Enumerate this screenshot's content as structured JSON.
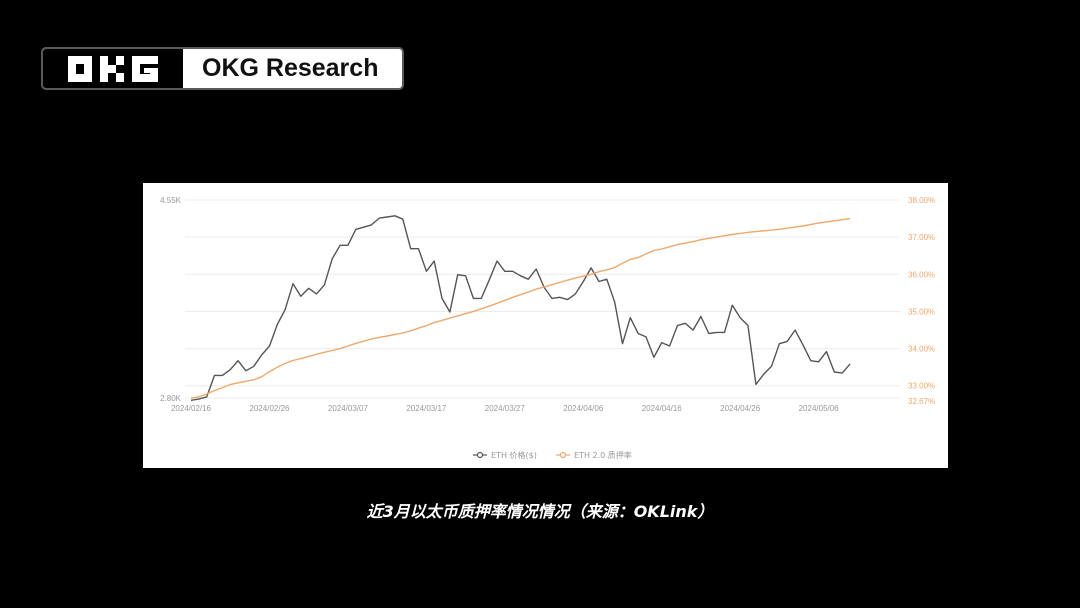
{
  "header": {
    "brand_name": "OKG Research",
    "logo_icon": "okx-logo-icon"
  },
  "caption": "近3月以太币质押率情况情况（来源：OKLink）",
  "colors": {
    "price_line": "#555555",
    "staking_line": "#f0a869",
    "grid": "#ececec",
    "axis_text": "#999999"
  },
  "chart_data": {
    "type": "line",
    "title": "",
    "xlabel": "",
    "ylabel": "",
    "legend_position": "bottom",
    "grid": true,
    "x_tick_labels": [
      "2024/02/16",
      "2024/02/26",
      "2024/03/07",
      "2024/03/17",
      "2024/03/27",
      "2024/04/06",
      "2024/04/16",
      "2024/04/26",
      "2024/05/06"
    ],
    "y_left": {
      "min": 2800,
      "max": 4550,
      "tick_labels": [
        "4.55K",
        "2.80K"
      ]
    },
    "y_right": {
      "min": 32.67,
      "max": 38.0,
      "tick_labels": [
        "38.00%",
        "37.00%",
        "36.00%",
        "35.00%",
        "34.00%",
        "33.00%",
        "32.67%"
      ],
      "tick_values": [
        38,
        37,
        36,
        35,
        34,
        33,
        32.67
      ]
    },
    "series": [
      {
        "name": "ETH 价格($)",
        "axis": "left",
        "values": [
          2780,
          2790,
          2810,
          3000,
          3000,
          3050,
          3130,
          3040,
          3080,
          3180,
          3260,
          3450,
          3580,
          3810,
          3700,
          3770,
          3720,
          3800,
          4030,
          4150,
          4150,
          4290,
          4310,
          4330,
          4390,
          4400,
          4410,
          4380,
          4120,
          4120,
          3920,
          4010,
          3680,
          3560,
          3890,
          3880,
          3680,
          3680,
          3840,
          4010,
          3920,
          3920,
          3880,
          3850,
          3940,
          3780,
          3680,
          3690,
          3670,
          3720,
          3830,
          3950,
          3830,
          3850,
          3650,
          3280,
          3510,
          3370,
          3340,
          3160,
          3290,
          3260,
          3440,
          3460,
          3400,
          3520,
          3370,
          3380,
          3380,
          3620,
          3510,
          3440,
          2920,
          3010,
          3080,
          3280,
          3300,
          3400,
          3270,
          3130,
          3120,
          3210,
          3030,
          3020,
          3100
        ]
      },
      {
        "name": "ETH 2.0 质押率",
        "axis": "right",
        "values": [
          32.67,
          32.7,
          32.78,
          32.87,
          32.95,
          33.03,
          33.08,
          33.12,
          33.16,
          33.24,
          33.38,
          33.5,
          33.6,
          33.68,
          33.73,
          33.79,
          33.85,
          33.9,
          33.95,
          34.0,
          34.07,
          34.14,
          34.2,
          34.26,
          34.3,
          34.34,
          34.38,
          34.42,
          34.48,
          34.55,
          34.62,
          34.7,
          34.76,
          34.82,
          34.88,
          34.94,
          35.0,
          35.07,
          35.14,
          35.22,
          35.3,
          35.38,
          35.45,
          35.52,
          35.6,
          35.66,
          35.72,
          35.78,
          35.84,
          35.9,
          35.95,
          36.0,
          36.07,
          36.12,
          36.18,
          36.3,
          36.4,
          36.45,
          36.55,
          36.64,
          36.68,
          36.74,
          36.8,
          36.84,
          36.88,
          36.93,
          36.97,
          37.0,
          37.04,
          37.07,
          37.1,
          37.13,
          37.15,
          37.17,
          37.19,
          37.21,
          37.24,
          37.27,
          37.3,
          37.34,
          37.38,
          37.41,
          37.44,
          37.47,
          37.5
        ]
      }
    ]
  }
}
